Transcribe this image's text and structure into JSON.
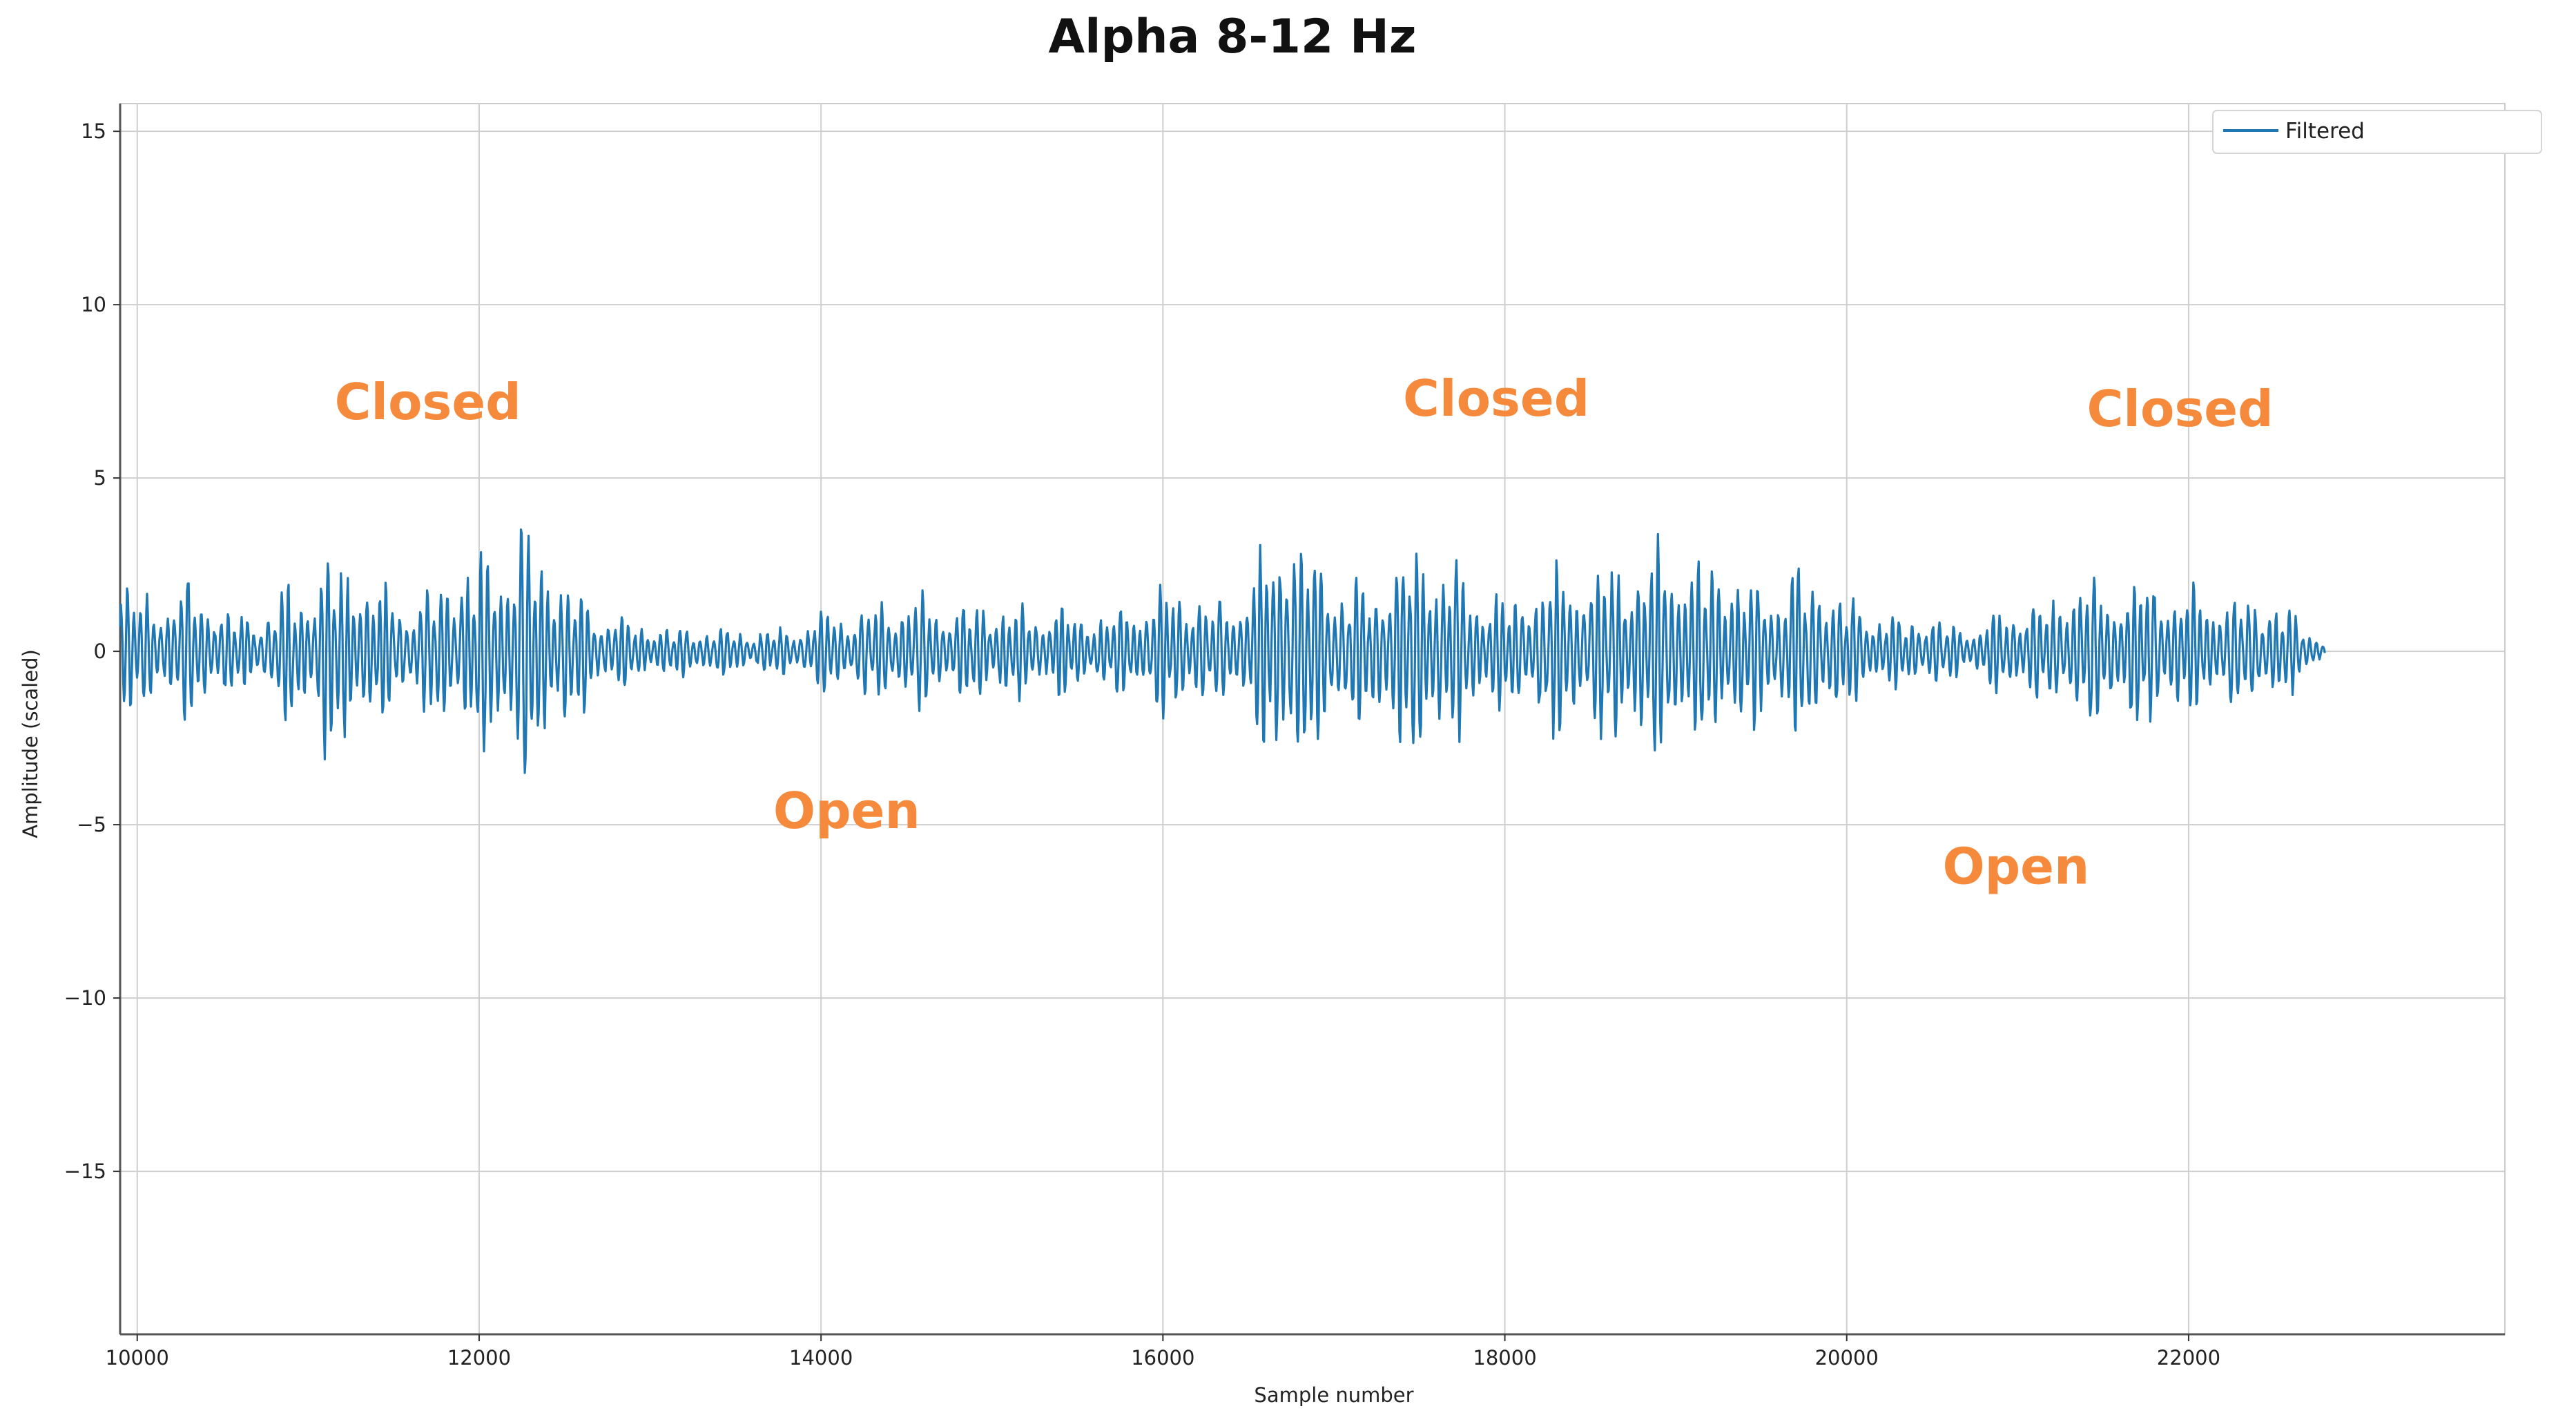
{
  "chart_data": {
    "type": "line",
    "title": "Alpha 8-12 Hz",
    "xlabel": "Sample number",
    "ylabel": "Amplitude (scaled)",
    "xlim": [
      9900,
      23850
    ],
    "ylim": [
      -19.7,
      15.8
    ],
    "x_ticks": [
      10000,
      12000,
      14000,
      16000,
      18000,
      20000,
      22000
    ],
    "x_tick_labels": [
      "10000",
      "12000",
      "14000",
      "16000",
      "18000",
      "20000",
      "22000"
    ],
    "y_ticks": [
      15,
      10,
      5,
      0,
      -5,
      -10,
      -15
    ],
    "y_tick_labels": [
      "15",
      "10",
      "5",
      "0",
      "−5",
      "−10",
      "−15"
    ],
    "grid": true,
    "legend_position": "top-right",
    "series": [
      {
        "name": "Filtered",
        "color": "#1f77b4",
        "x": [
          9900,
          10000,
          10150,
          10300,
          10450,
          10600,
          10750,
          10900,
          11050,
          11100,
          11150,
          11300,
          11450,
          11600,
          11750,
          11900,
          12000,
          12100,
          12250,
          12300,
          12400,
          12550,
          12700,
          12850,
          13000,
          13150,
          13300,
          13450,
          13600,
          13750,
          13900,
          14050,
          14200,
          14350,
          14500,
          14650,
          14800,
          14950,
          15100,
          15250,
          15400,
          15550,
          15700,
          15850,
          16000,
          16150,
          16300,
          16450,
          16600,
          16750,
          16900,
          17050,
          17200,
          17350,
          17500,
          17650,
          17800,
          17950,
          18100,
          18250,
          18400,
          18550,
          18700,
          18850,
          18950,
          19100,
          19250,
          19400,
          19550,
          19700,
          19850,
          20000,
          20150,
          20300,
          20450,
          20600,
          20750,
          20900,
          21050,
          21200,
          21350,
          21500,
          21650,
          21800,
          21950,
          22100,
          22250,
          22400,
          22550,
          22700,
          22800
        ],
        "envelope": [
          2.6,
          2.0,
          1.8,
          2.5,
          1.7,
          1.2,
          1.4,
          2.4,
          2.6,
          3.8,
          3.1,
          2.9,
          2.2,
          1.8,
          2.5,
          2.9,
          3.3,
          3.5,
          4.5,
          4.2,
          3.4,
          2.3,
          1.6,
          1.2,
          0.9,
          0.8,
          0.9,
          0.8,
          0.7,
          0.8,
          0.9,
          1.5,
          1.3,
          1.7,
          1.9,
          1.8,
          1.5,
          1.7,
          1.6,
          1.4,
          1.6,
          1.2,
          1.3,
          1.8,
          2.2,
          2.0,
          1.7,
          2.0,
          3.5,
          4.8,
          3.4,
          2.7,
          2.3,
          3.2,
          3.8,
          3.3,
          2.3,
          2.0,
          1.8,
          3.0,
          2.9,
          3.0,
          3.2,
          3.2,
          4.0,
          3.1,
          3.3,
          2.5,
          2.5,
          2.9,
          2.6,
          1.8,
          1.5,
          1.2,
          1.3,
          0.9,
          0.9,
          1.4,
          1.8,
          1.6,
          2.9,
          2.2,
          2.6,
          2.5,
          2.2,
          2.2,
          1.8,
          1.9,
          1.6,
          0.9,
          0.3
        ]
      }
    ],
    "annotations": [
      {
        "text": "Closed",
        "x": 11700,
        "y": 6.7
      },
      {
        "text": "Closed",
        "x": 17950,
        "y": 6.8
      },
      {
        "text": "Closed",
        "x": 21950,
        "y": 6.5
      },
      {
        "text": "Open",
        "x": 14150,
        "y": -5.1
      },
      {
        "text": "Open",
        "x": 20990,
        "y": -6.7
      }
    ]
  }
}
